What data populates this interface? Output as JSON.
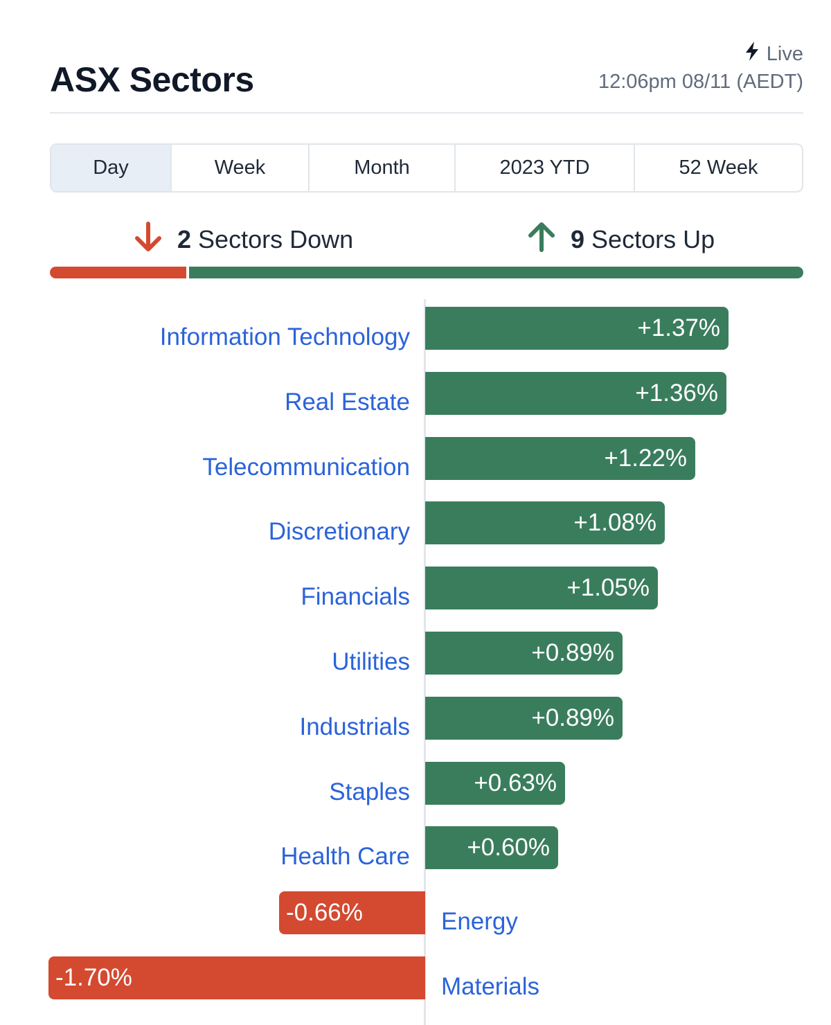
{
  "header": {
    "title": "ASX Sectors",
    "live_label": "Live",
    "timestamp": "12:06pm 08/11 (AEDT)"
  },
  "tabs": [
    {
      "label": "Day",
      "active": true
    },
    {
      "label": "Week",
      "active": false
    },
    {
      "label": "Month",
      "active": false
    },
    {
      "label": "2023 YTD",
      "active": false
    },
    {
      "label": "52 Week",
      "active": false
    }
  ],
  "summary": {
    "down_count": "2",
    "down_label": "Sectors Down",
    "up_count": "9",
    "up_label": "Sectors Up"
  },
  "colors": {
    "up": "#3a7d5d",
    "down": "#d34a31",
    "link": "#2b63d9"
  },
  "icons": {
    "live": "lightning-bolt-icon",
    "down": "arrow-down-icon",
    "up": "arrow-up-icon"
  },
  "sectors": [
    {
      "name": "Information Technology",
      "change": 1.37,
      "change_label": "+1.37%"
    },
    {
      "name": "Real Estate",
      "change": 1.36,
      "change_label": "+1.36%"
    },
    {
      "name": "Telecommunication",
      "change": 1.22,
      "change_label": "+1.22%"
    },
    {
      "name": "Discretionary",
      "change": 1.08,
      "change_label": "+1.08%"
    },
    {
      "name": "Financials",
      "change": 1.05,
      "change_label": "+1.05%"
    },
    {
      "name": "Utilities",
      "change": 0.89,
      "change_label": "+0.89%"
    },
    {
      "name": "Industrials",
      "change": 0.89,
      "change_label": "+0.89%"
    },
    {
      "name": "Staples",
      "change": 0.63,
      "change_label": "+0.63%"
    },
    {
      "name": "Health Care",
      "change": 0.6,
      "change_label": "+0.60%"
    },
    {
      "name": "Energy",
      "change": -0.66,
      "change_label": "-0.66%"
    },
    {
      "name": "Materials",
      "change": -1.7,
      "change_label": "-1.70%"
    }
  ]
}
